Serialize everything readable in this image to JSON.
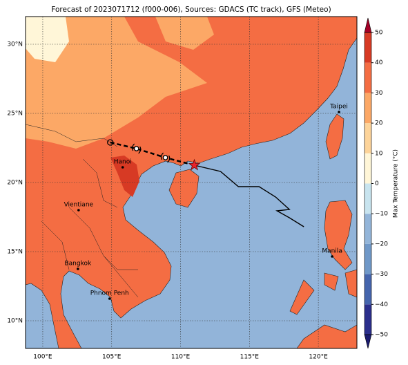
{
  "title": "Forecast of 2023071712 (f000-006), Sources: GDACS (TC track), GFS (Meteo)",
  "map": {
    "lon_range": [
      98.75,
      122.8
    ],
    "lat_range": [
      8,
      32
    ],
    "lon_ticks": [
      {
        "value": 100,
        "label": "100°E"
      },
      {
        "value": 105,
        "label": "105°E"
      },
      {
        "value": 110,
        "label": "110°E"
      },
      {
        "value": 115,
        "label": "115°E"
      },
      {
        "value": 120,
        "label": "120°E"
      }
    ],
    "lat_ticks": [
      {
        "value": 10,
        "label": "10°N"
      },
      {
        "value": 15,
        "label": "15°N"
      },
      {
        "value": 20,
        "label": "20°N"
      },
      {
        "value": 25,
        "label": "25°N"
      },
      {
        "value": 30,
        "label": "30°N"
      }
    ],
    "cities": [
      {
        "name": "Taipei",
        "lon": 121.5,
        "lat": 25.1
      },
      {
        "name": "Hanoi",
        "lon": 105.8,
        "lat": 21.1
      },
      {
        "name": "Vientiane",
        "lon": 102.6,
        "lat": 18.0
      },
      {
        "name": "Bangkok",
        "lon": 102.55,
        "lat": 13.75
      },
      {
        "name": "Manila",
        "lon": 121.0,
        "lat": 14.65
      },
      {
        "name": "Phnom Penh",
        "lon": 104.85,
        "lat": 11.6
      }
    ],
    "forecast_track": {
      "lon": [
        104.9,
        106.8,
        108.9,
        111.0
      ],
      "lat": [
        22.9,
        22.45,
        21.8,
        21.25
      ]
    },
    "past_track": {
      "lon": [
        111.0,
        112.9,
        114.2,
        115.7,
        116.9,
        117.9,
        117.0,
        117.9,
        118.95
      ],
      "lat": [
        21.25,
        20.8,
        19.7,
        19.7,
        18.95,
        18.05,
        17.95,
        17.45,
        16.8
      ]
    }
  },
  "colorbar": {
    "label": "Max Temperature (°C)",
    "ticks": [
      {
        "value": -50,
        "label": "−50"
      },
      {
        "value": -40,
        "label": "−40"
      },
      {
        "value": -30,
        "label": "−30"
      },
      {
        "value": -20,
        "label": "−20"
      },
      {
        "value": -10,
        "label": "−10"
      },
      0,
      10,
      20,
      30,
      40,
      50
    ],
    "colors": [
      "#2b2f8c",
      "#4565ad",
      "#6f98c8",
      "#93b5d9",
      "#c8e4ef",
      "#fff6d8",
      "#fdd49a",
      "#fca866",
      "#f46d43",
      "#d73a24"
    ],
    "under_color": "#1a1a6e",
    "over_color": "#a50026"
  }
}
